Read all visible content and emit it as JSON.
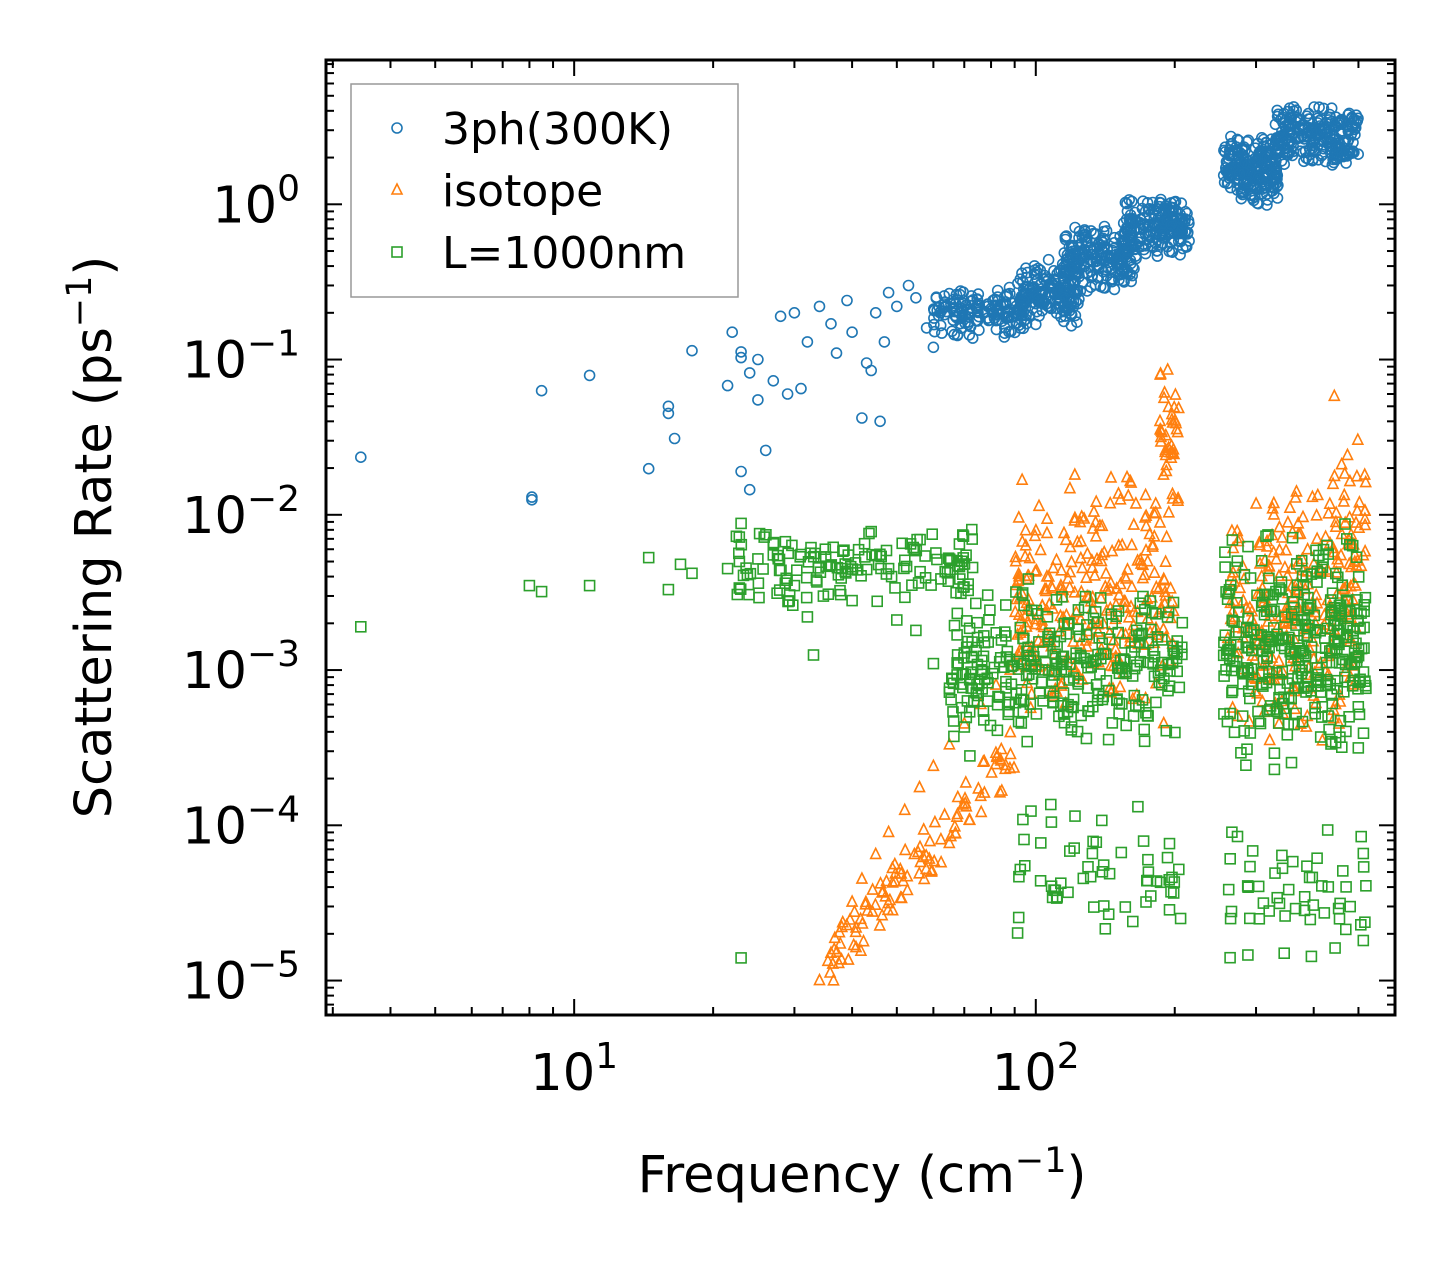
{
  "chart_data": {
    "type": "scatter",
    "title": "",
    "xlabel": {
      "base": "Frequency (cm",
      "sup": "−1",
      "tail": ")"
    },
    "ylabel": {
      "base": "Scattering Rate (ps",
      "sup": "−1",
      "tail": ")"
    },
    "x_scale": "log",
    "y_scale": "log",
    "xlim": [
      2.9,
      600
    ],
    "ylim": [
      6e-06,
      8.5
    ],
    "x_ticks": [
      {
        "value": 10,
        "base": "10",
        "exp": "1"
      },
      {
        "value": 100,
        "base": "10",
        "exp": "2"
      }
    ],
    "y_ticks": [
      {
        "value": 1,
        "base": "10",
        "exp": "0"
      },
      {
        "value": 0.1,
        "base": "10",
        "exp": "−1"
      },
      {
        "value": 0.01,
        "base": "10",
        "exp": "−2"
      },
      {
        "value": 0.001,
        "base": "10",
        "exp": "−3"
      },
      {
        "value": 0.0001,
        "base": "10",
        "exp": "−4"
      },
      {
        "value": 1e-05,
        "base": "10",
        "exp": "−5"
      }
    ],
    "grid": false,
    "legend_position": "top-left",
    "series": [
      {
        "name": "3ph(300K)",
        "marker": "circle",
        "color": "#1f77b4",
        "points": [
          [
            3.45,
            0.0235
          ],
          [
            8.1,
            0.0125
          ],
          [
            8.1,
            0.013
          ],
          [
            8.5,
            0.063
          ],
          [
            10.8,
            0.079
          ],
          [
            14.5,
            0.0198
          ],
          [
            16,
            0.05
          ],
          [
            16,
            0.045
          ],
          [
            16.5,
            0.031
          ],
          [
            18,
            0.114
          ],
          [
            21.5,
            0.068
          ],
          [
            22,
            0.15
          ],
          [
            23,
            0.112
          ],
          [
            23,
            0.103
          ],
          [
            24,
            0.082
          ],
          [
            24,
            0.0145
          ],
          [
            23,
            0.019
          ],
          [
            25,
            0.055
          ],
          [
            25,
            0.1
          ],
          [
            26,
            0.026
          ],
          [
            27,
            0.073
          ],
          [
            28,
            0.19
          ],
          [
            29,
            0.06
          ],
          [
            30,
            0.2
          ],
          [
            31,
            0.065
          ],
          [
            32,
            0.13
          ],
          [
            34,
            0.22
          ],
          [
            36,
            0.17
          ],
          [
            37,
            0.11
          ],
          [
            39,
            0.24
          ],
          [
            40,
            0.15
          ],
          [
            42,
            0.042
          ],
          [
            43,
            0.095
          ],
          [
            44,
            0.085
          ],
          [
            45,
            0.2
          ],
          [
            46,
            0.04
          ],
          [
            47,
            0.13
          ],
          [
            48,
            0.27
          ],
          [
            50,
            0.22
          ],
          [
            53,
            0.3
          ],
          [
            55,
            0.25
          ],
          [
            58,
            0.16
          ],
          [
            60,
            0.12
          ],
          [
            62,
            0.2
          ]
        ],
        "clusters": [
          {
            "x": [
              60,
              95
            ],
            "y": [
              0.13,
              0.32
            ],
            "count": 160
          },
          {
            "x": [
              92,
              125
            ],
            "y": [
              0.16,
              0.45
            ],
            "count": 170
          },
          {
            "x": [
              115,
              165
            ],
            "y": [
              0.26,
              0.8
            ],
            "count": 190
          },
          {
            "x": [
              155,
              215
            ],
            "y": [
              0.45,
              1.15
            ],
            "count": 200
          },
          {
            "x": [
              255,
              335
            ],
            "y": [
              0.95,
              2.8
            ],
            "count": 230
          },
          {
            "x": [
              330,
              500
            ],
            "y": [
              1.7,
              4.5
            ],
            "count": 240
          }
        ]
      },
      {
        "name": "isotope",
        "marker": "triangle",
        "color": "#ff7f0e",
        "points": [
          [
            34,
            1e-05
          ],
          [
            36,
            1.5e-05
          ],
          [
            38,
            2.2e-05
          ],
          [
            40,
            3.2e-05
          ],
          [
            42,
            4.5e-05
          ],
          [
            45,
            6.5e-05
          ],
          [
            48,
            9e-05
          ],
          [
            52,
            0.000125
          ],
          [
            56,
            0.000175
          ],
          [
            60,
            0.00024
          ],
          [
            65,
            0.00033
          ],
          [
            70,
            0.00045
          ],
          [
            76,
            0.0006
          ],
          [
            82,
            0.0008
          ],
          [
            88,
            0.001
          ],
          [
            93,
            0.0013
          ]
        ],
        "clusters": [
          {
            "x": [
              35,
              90
            ],
            "y": [
              1.2e-05,
              0.0003
            ],
            "count": 110,
            "band": true
          },
          {
            "x": [
              90,
              200
            ],
            "y": [
              0.0004,
              0.022
            ],
            "count": 280
          },
          {
            "x": [
              185,
              205
            ],
            "y": [
              0.01,
              0.1
            ],
            "count": 40
          },
          {
            "x": [
              260,
              500
            ],
            "y": [
              0.0003,
              0.018
            ],
            "count": 240
          },
          {
            "x": [
              440,
              520
            ],
            "y": [
              0.003,
              0.06
            ],
            "count": 40
          }
        ]
      },
      {
        "name": "L=1000nm",
        "marker": "square",
        "color": "#2ca02c",
        "points": [
          [
            3.45,
            0.0019
          ],
          [
            8,
            0.0035
          ],
          [
            8.5,
            0.0032
          ],
          [
            10.8,
            0.0035
          ],
          [
            14.5,
            0.0053
          ],
          [
            16,
            0.0033
          ],
          [
            17,
            0.0048
          ],
          [
            18,
            0.0042
          ],
          [
            21.5,
            0.0045
          ],
          [
            23,
            0.0088
          ],
          [
            23,
            1.4e-05
          ],
          [
            25,
            0.0052
          ],
          [
            27,
            0.0065
          ],
          [
            30,
            0.0035
          ],
          [
            32,
            0.0022
          ],
          [
            33,
            0.00125
          ],
          [
            35,
            0.006
          ],
          [
            38,
            0.0045
          ],
          [
            40,
            0.0028
          ],
          [
            44,
            0.0078
          ],
          [
            48,
            0.0045
          ],
          [
            50,
            0.0021
          ],
          [
            55,
            0.0018
          ],
          [
            60,
            0.0011
          ],
          [
            65,
            0.00072
          ],
          [
            70,
            0.00043
          ],
          [
            72,
            0.00028
          ]
        ],
        "clusters": [
          {
            "x": [
              22,
              75
            ],
            "y": [
              0.0025,
              0.0085
            ],
            "count": 140
          },
          {
            "x": [
              65,
              210
            ],
            "y": [
              0.0003,
              0.004
            ],
            "count": 320
          },
          {
            "x": [
              90,
              210
            ],
            "y": [
              1.8e-05,
              0.00015
            ],
            "count": 60
          },
          {
            "x": [
              255,
              520
            ],
            "y": [
              0.0002,
              0.009
            ],
            "count": 340
          },
          {
            "x": [
              260,
              520
            ],
            "y": [
              1.2e-05,
              0.00012
            ],
            "count": 55
          }
        ]
      }
    ]
  }
}
